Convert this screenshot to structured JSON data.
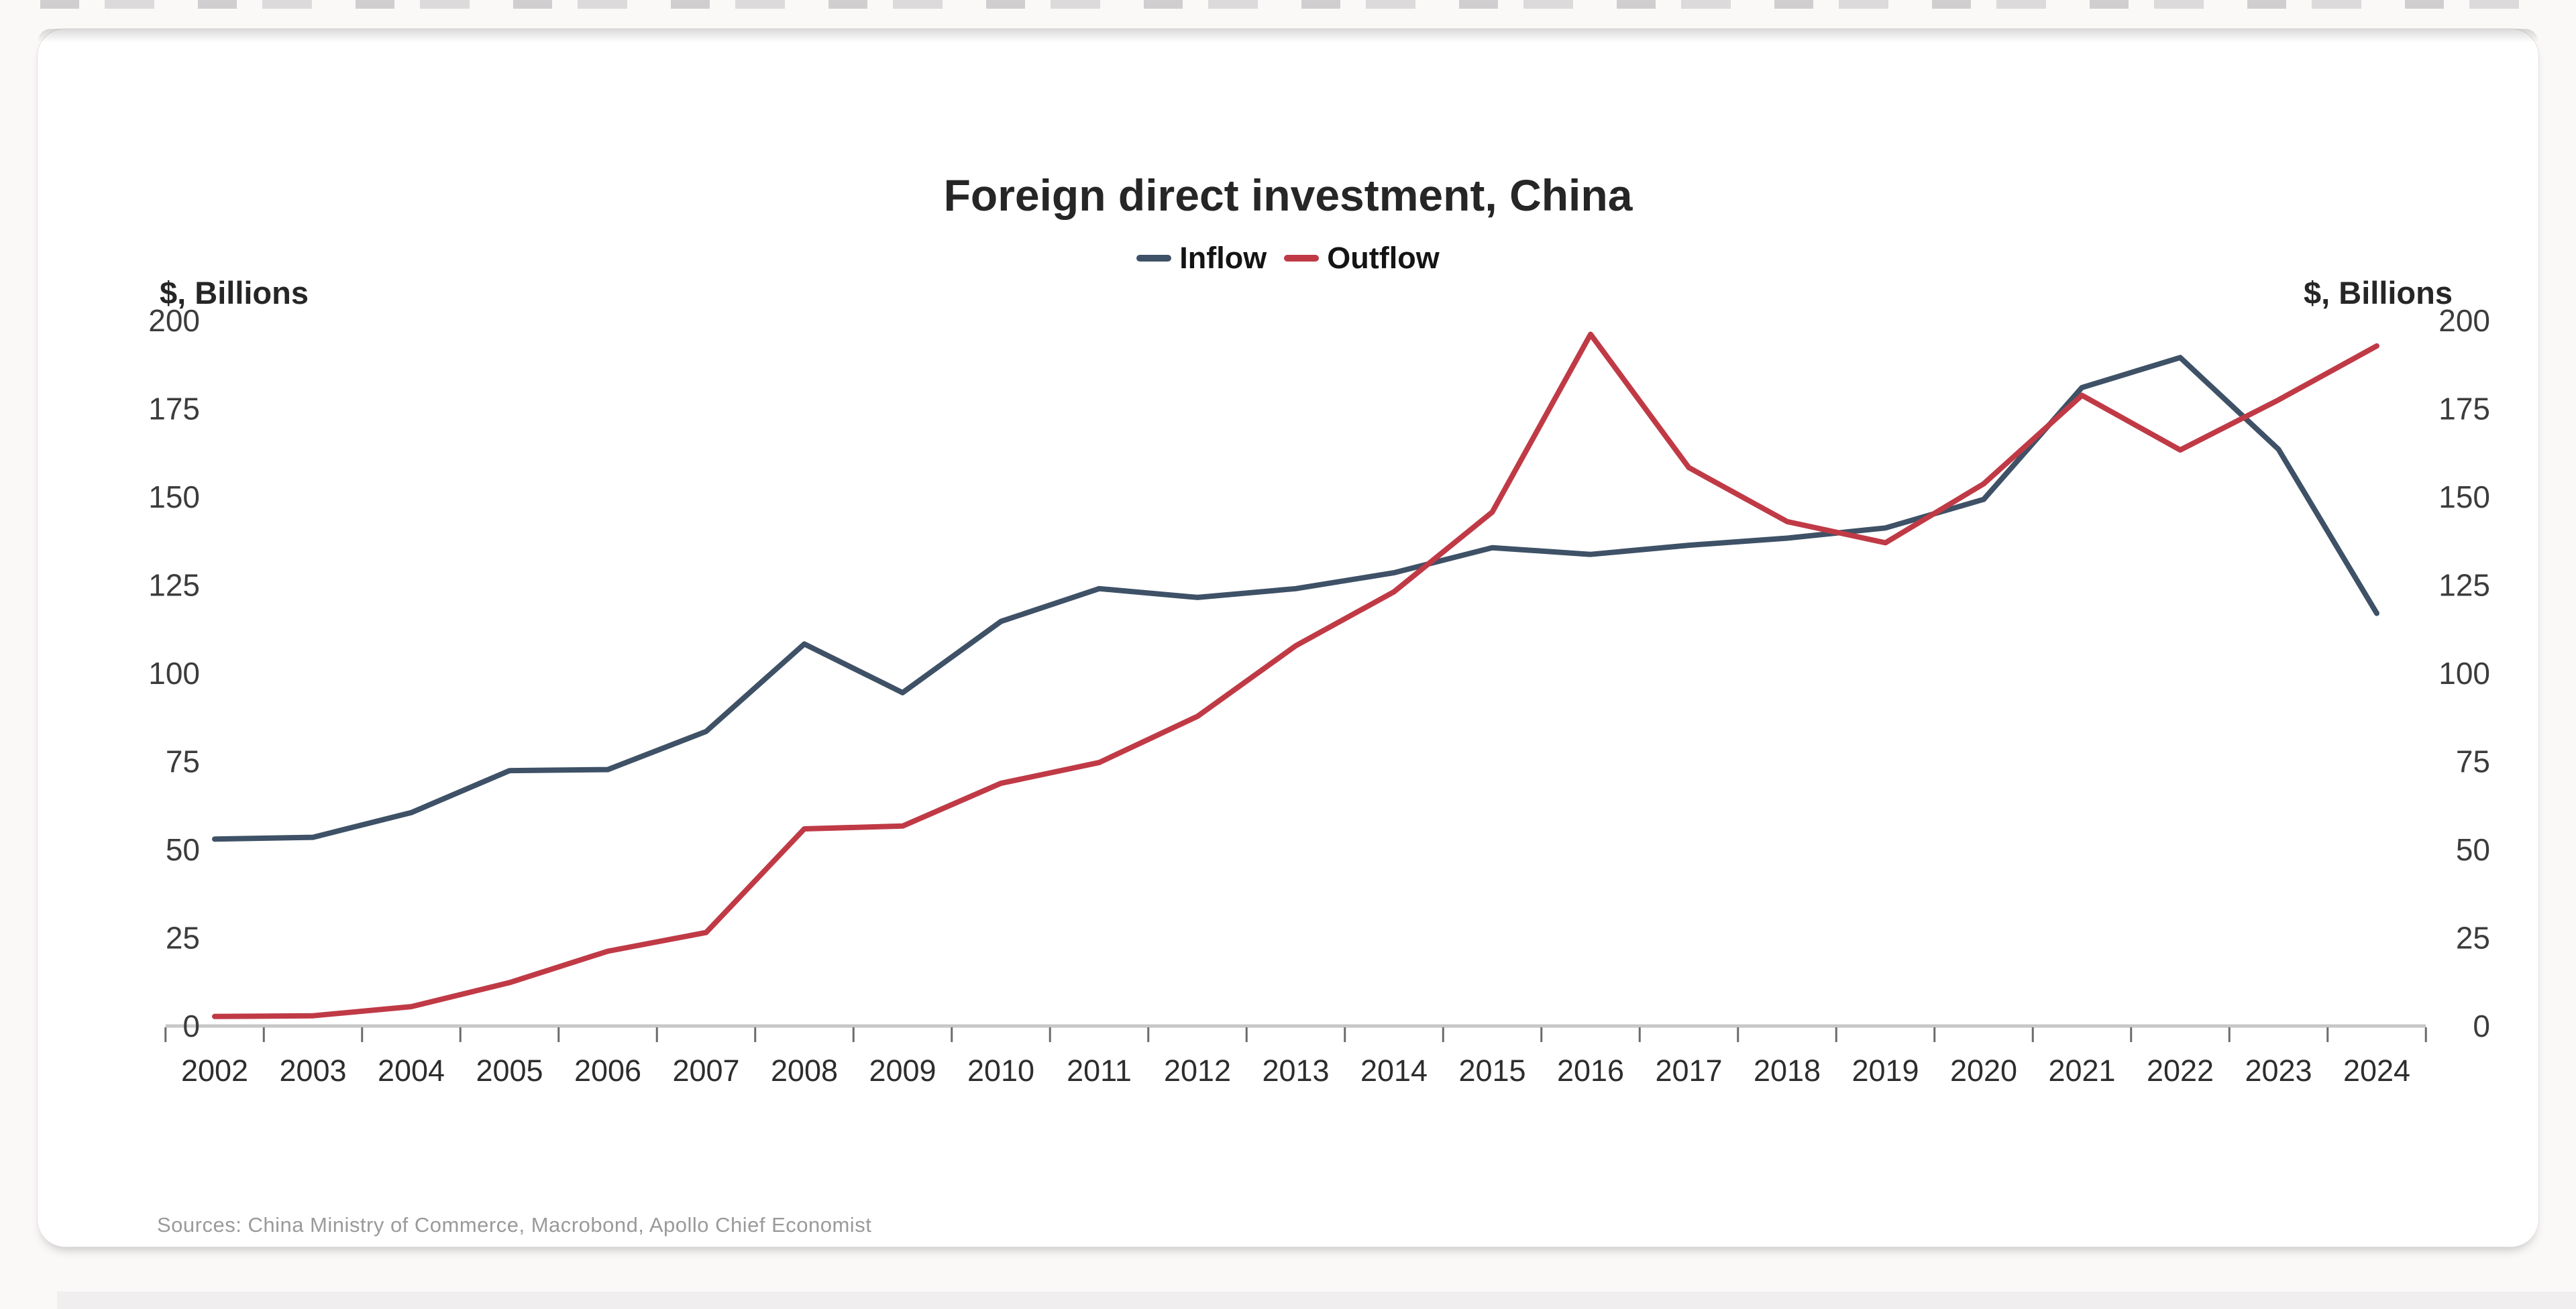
{
  "page": {
    "card_background": "#ffffff",
    "page_background": "#fbf8f8"
  },
  "chart_data": {
    "type": "line",
    "title": "Foreign direct investment, China",
    "unit_label_left": "$, Billions",
    "unit_label_right": "$, Billions",
    "source_note": "Sources: China Ministry of Commerce, Macrobond, Apollo Chief Economist",
    "years": [
      2002,
      2003,
      2004,
      2005,
      2006,
      2007,
      2008,
      2009,
      2010,
      2011,
      2012,
      2013,
      2014,
      2015,
      2016,
      2017,
      2018,
      2019,
      2020,
      2021,
      2022,
      2023,
      2024
    ],
    "series": [
      {
        "name": "Inflow",
        "color": "#3e5166",
        "values": [
          53,
          53.5,
          60.5,
          72.4,
          72.7,
          83.5,
          108.3,
          94.5,
          114.7,
          124,
          121.5,
          124,
          128.5,
          135.6,
          133.7,
          136.3,
          138.3,
          141.2,
          149.3,
          181,
          189.5,
          163.5,
          117
        ]
      },
      {
        "name": "Outflow",
        "color": "#c03a46",
        "values": [
          2.7,
          2.9,
          5.5,
          12.3,
          21.2,
          26.5,
          55.9,
          56.7,
          68.8,
          74.7,
          87.8,
          107.8,
          123.1,
          145.7,
          196.1,
          158.3,
          143,
          137,
          153.7,
          178.8,
          163.3,
          177.5,
          192.8
        ]
      }
    ],
    "ylim": [
      0,
      200
    ],
    "yticks": [
      0,
      25,
      50,
      75,
      100,
      125,
      150,
      175,
      200
    ],
    "grid": false,
    "legend_position": "top-center",
    "axis_line_color": "#c7c7c7",
    "tick_mark_color": "#6b6b6b",
    "tick_label_color": "#3c3c3c",
    "year_label_color": "#2d2d2d"
  }
}
